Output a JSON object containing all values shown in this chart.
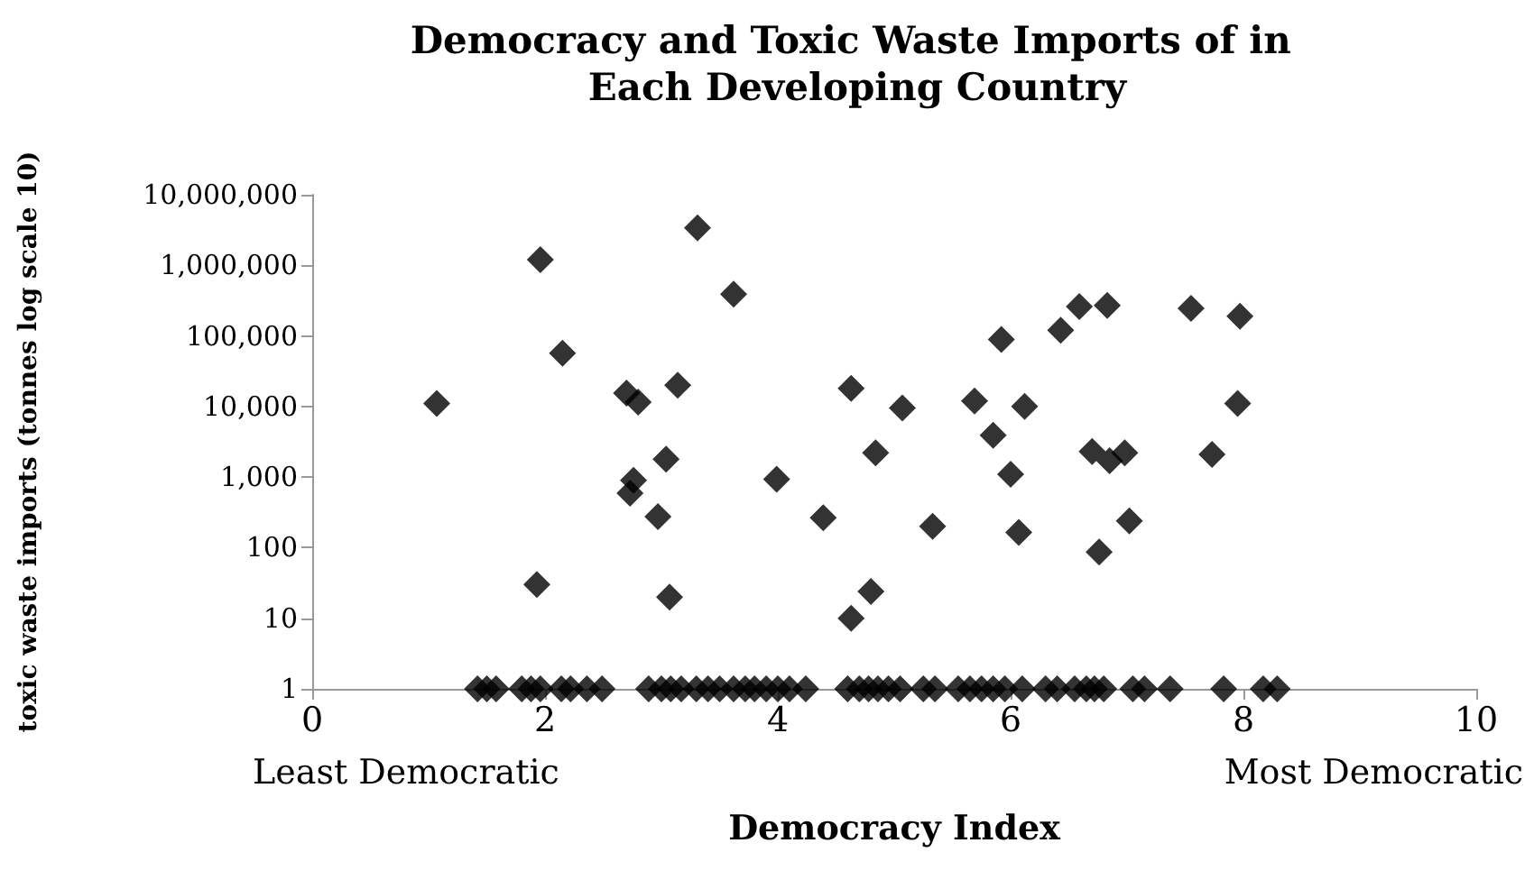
{
  "chart_data": {
    "type": "scatter",
    "title": "Democracy and Toxic Waste Imports of in Each Developing Country",
    "xlabel": "Democracy Index",
    "ylabel": "toxic waste imports (tonnes log scale 10)",
    "annotations": [
      "Least Democratic",
      "Most Democratic"
    ],
    "x": [
      1.07,
      1.96,
      3.31,
      3.62,
      2.15,
      2.7,
      2.8,
      3.14,
      3.04,
      2.76,
      2.73,
      2.97,
      3.99,
      4.39,
      1.93,
      3.07,
      4.63,
      4.84,
      4.8,
      4.63,
      5.07,
      5.92,
      6.43,
      6.59,
      6.83,
      7.55,
      7.97,
      5.69,
      5.85,
      6.12,
      6.0,
      7.95,
      6.7,
      6.85,
      6.98,
      7.73,
      5.33,
      6.07,
      7.02,
      6.76,
      1.42,
      1.5,
      1.58,
      1.8,
      1.88,
      1.96,
      2.14,
      2.22,
      2.36,
      2.49,
      2.89,
      3.0,
      3.08,
      3.17,
      3.3,
      3.4,
      3.5,
      3.62,
      3.72,
      3.8,
      3.9,
      4.0,
      4.1,
      4.24,
      4.6,
      4.7,
      4.78,
      4.86,
      4.95,
      5.05,
      5.25,
      5.35,
      5.55,
      5.65,
      5.75,
      5.85,
      5.95,
      6.1,
      6.3,
      6.4,
      6.55,
      6.65,
      6.72,
      6.8,
      7.05,
      7.15,
      7.37,
      7.83,
      8.17,
      8.29
    ],
    "series": [
      {
        "color": "#000000",
        "values": [
          11000,
          1200000,
          3400000,
          390000,
          57000,
          15500,
          11500,
          20000,
          1800,
          900,
          590,
          275,
          930,
          265,
          30,
          20,
          18000,
          2200,
          24,
          10,
          9500,
          89000,
          120000,
          260000,
          270000,
          245000,
          190000,
          12000,
          3900,
          10000,
          1100,
          11000,
          2300,
          1700,
          2200,
          2100,
          200,
          165,
          240,
          87,
          1,
          1,
          1,
          1,
          1,
          1,
          1,
          1,
          1,
          1,
          1,
          1,
          1,
          1,
          1,
          1,
          1,
          1,
          1,
          1,
          1,
          1,
          1,
          1,
          1,
          1,
          1,
          1,
          1,
          1,
          1,
          1,
          1,
          1,
          1,
          1,
          1,
          1,
          1,
          1,
          1,
          1,
          1,
          1,
          1,
          1,
          1,
          1,
          1,
          1
        ]
      }
    ],
    "xlim": [
      0,
      10
    ],
    "xticks": [
      0,
      2,
      4,
      6,
      8,
      10
    ],
    "ylim": [
      1,
      10000000
    ],
    "yticks": [
      1,
      10,
      100,
      {
        "value": 1000,
        "label": "1,000"
      },
      {
        "value": 10000,
        "label": "10,000"
      },
      {
        "value": 100000,
        "label": "100,000"
      },
      {
        "value": 1000000,
        "label": "1,000,000"
      },
      {
        "value": 10000000,
        "label": "10,000,000"
      }
    ],
    "log": "y",
    "grid": false,
    "marker": "diamond"
  }
}
